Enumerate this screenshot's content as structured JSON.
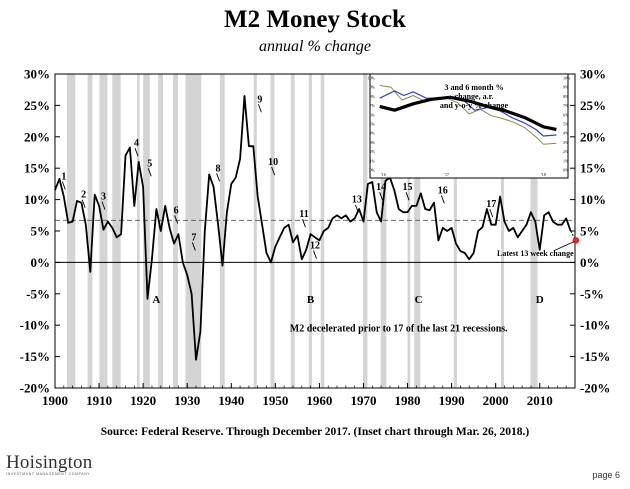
{
  "header": {
    "title": "M2 Money Stock",
    "subtitle": "annual % change"
  },
  "footer": {
    "source": "Source: Federal Reserve.  Through December 2017.  (Inset chart through Mar. 26, 2018.)",
    "logo_text": "Hoisington",
    "logo_subtext": "INVESTMENT MANAGEMENT COMPANY",
    "page": "page 6"
  },
  "colors": {
    "line": "#000000",
    "recession": "#d4d4d4",
    "latest_point": "#ee2222",
    "inset_blue": "#3344bb",
    "inset_olive": "#8a8a4a",
    "reference_line": "#555555"
  },
  "chart_data": [
    {
      "type": "line",
      "title": "M2 Money Stock",
      "subtitle": "annual % change",
      "xlim": [
        1900,
        2018
      ],
      "ylim": [
        -20,
        30
      ],
      "x_ticks": [
        "1900",
        "1910",
        "1920",
        "1930",
        "1940",
        "1950",
        "1960",
        "1970",
        "1980",
        "1990",
        "2000",
        "2010"
      ],
      "x_tick_values": [
        1900,
        1910,
        1920,
        1930,
        1940,
        1950,
        1960,
        1970,
        1980,
        1990,
        2000,
        2010
      ],
      "y_ticks": [
        "30%",
        "25%",
        "20%",
        "15%",
        "10%",
        "5%",
        "0%",
        "-5%",
        "-10%",
        "-15%",
        "-20%"
      ],
      "y_tick_values": [
        30,
        25,
        20,
        15,
        10,
        5,
        0,
        -5,
        -10,
        -15,
        -20
      ],
      "reference_line_value": 6.7,
      "recessions": [
        [
          1902.7,
          1904.6
        ],
        [
          1907.4,
          1908.5
        ],
        [
          1910.1,
          1911.9
        ],
        [
          1913.0,
          1914.9
        ],
        [
          1918.6,
          1919.2
        ],
        [
          1920.0,
          1921.5
        ],
        [
          1923.4,
          1924.5
        ],
        [
          1926.8,
          1927.9
        ],
        [
          1929.6,
          1933.2
        ],
        [
          1937.4,
          1938.5
        ],
        [
          1945.1,
          1945.8
        ],
        [
          1948.9,
          1949.8
        ],
        [
          1953.5,
          1954.4
        ],
        [
          1957.6,
          1958.3
        ],
        [
          1960.3,
          1961.1
        ],
        [
          1969.9,
          1970.9
        ],
        [
          1973.9,
          1975.2
        ],
        [
          1980.0,
          1980.6
        ],
        [
          1981.5,
          1982.9
        ],
        [
          1990.5,
          1991.2
        ],
        [
          2001.2,
          2001.9
        ],
        [
          2007.9,
          2009.5
        ]
      ],
      "series": [
        {
          "x": [
            1900,
            1901,
            1902,
            1903,
            1904,
            1905,
            1906,
            1907,
            1908,
            1909,
            1910,
            1911,
            1912,
            1913,
            1914,
            1915,
            1916,
            1917,
            1918,
            1919,
            1920,
            1921,
            1922,
            1923,
            1924,
            1925,
            1926,
            1927,
            1928,
            1929,
            1930,
            1931,
            1932,
            1933,
            1934,
            1935,
            1936,
            1937,
            1938,
            1939,
            1940,
            1941,
            1942,
            1943,
            1944,
            1945,
            1946,
            1947,
            1948,
            1949,
            1950,
            1951,
            1952,
            1953,
            1954,
            1955,
            1956,
            1957,
            1958,
            1959,
            1960,
            1961,
            1962,
            1963,
            1964,
            1965,
            1966,
            1967,
            1968,
            1969,
            1970,
            1971,
            1972,
            1973,
            1974,
            1975,
            1976,
            1977,
            1978,
            1979,
            1980,
            1981,
            1982,
            1983,
            1984,
            1985,
            1986,
            1987,
            1988,
            1989,
            1990,
            1991,
            1992,
            1993,
            1994,
            1995,
            1996,
            1997,
            1998,
            1999,
            2000,
            2001,
            2002,
            2003,
            2004,
            2005,
            2006,
            2007,
            2008,
            2009,
            2010,
            2011,
            2012,
            2013,
            2014,
            2015,
            2016,
            2017
          ],
          "values": [
            11.5,
            13.3,
            10.5,
            6.3,
            6.5,
            9.8,
            9.5,
            6.0,
            -1.5,
            10.8,
            9.0,
            5.2,
            6.5,
            5.5,
            4.0,
            4.5,
            17.0,
            18.3,
            9.0,
            16.0,
            12.0,
            -5.8,
            0.5,
            8.5,
            5.0,
            9.0,
            5.5,
            3.0,
            4.5,
            0.0,
            -2.0,
            -5.0,
            -15.5,
            -11.0,
            5.0,
            14.0,
            12.0,
            6.0,
            -0.5,
            8.0,
            12.5,
            13.5,
            16.5,
            26.5,
            18.5,
            18.5,
            10.5,
            6.0,
            1.5,
            0.0,
            2.5,
            4.0,
            5.5,
            6.0,
            3.2,
            4.3,
            0.5,
            2.0,
            4.5,
            4.0,
            3.5,
            5.0,
            5.5,
            7.0,
            7.5,
            7.0,
            7.5,
            6.5,
            7.0,
            8.5,
            6.5,
            12.5,
            12.8,
            8.0,
            6.5,
            13.0,
            13.5,
            11.5,
            8.5,
            8.0,
            8.0,
            9.0,
            9.0,
            11.0,
            8.5,
            8.3,
            9.5,
            3.5,
            5.5,
            5.0,
            5.5,
            3.0,
            1.8,
            1.5,
            0.5,
            1.5,
            5.0,
            5.6,
            8.5,
            6.0,
            6.0,
            10.5,
            6.5,
            5.0,
            5.5,
            4.0,
            5.0,
            6.0,
            8.0,
            6.5,
            2.0,
            7.5,
            8.0,
            6.5,
            6.0,
            6.0,
            7.0,
            5.0
          ]
        }
      ],
      "latest_point": {
        "x": 2018.2,
        "value": 3.5
      },
      "annotations": [
        {
          "label": "1",
          "x": 1902,
          "value": 13.2
        },
        {
          "label": "2",
          "x": 1906.5,
          "value": 10.3
        },
        {
          "label": "3",
          "x": 1911,
          "value": 10.0
        },
        {
          "label": "4",
          "x": 1918.5,
          "value": 18.5
        },
        {
          "label": "5",
          "x": 1921.5,
          "value": 15.3
        },
        {
          "label": "6",
          "x": 1927.5,
          "value": 7.8
        },
        {
          "label": "7",
          "x": 1931.5,
          "value": 3.5
        },
        {
          "label": "8",
          "x": 1937,
          "value": 14.5
        },
        {
          "label": "9",
          "x": 1946.5,
          "value": 25.5
        },
        {
          "label": "10",
          "x": 1949.5,
          "value": 15.5
        },
        {
          "label": "11",
          "x": 1956.5,
          "value": 7.2
        },
        {
          "label": "12",
          "x": 1959,
          "value": 2.2
        },
        {
          "label": "13",
          "x": 1968.5,
          "value": 9.5
        },
        {
          "label": "14",
          "x": 1974,
          "value": 11.5
        },
        {
          "label": "15",
          "x": 1980,
          "value": 11.5
        },
        {
          "label": "16",
          "x": 1988,
          "value": 11.0
        },
        {
          "label": "17",
          "x": 1999,
          "value": 8.8
        },
        {
          "label": "A",
          "x": 1923,
          "value": -6.5
        },
        {
          "label": "B",
          "x": 1958,
          "value": -6.5
        },
        {
          "label": "C",
          "x": 1982.5,
          "value": -6.5
        },
        {
          "label": "D",
          "x": 2010,
          "value": -6.5
        }
      ],
      "notes": [
        {
          "text": "M2 decelerated prior to 17 of the last 21 recessions.",
          "x": 1978,
          "value": -11
        },
        {
          "text": "Latest 13 week change",
          "x": 2009,
          "value": 1.0
        }
      ]
    },
    {
      "type": "line",
      "title": "3 and 6 month % change, a.r. and y-o-y % change",
      "title_lines": [
        "3 and 6 month %",
        "change, a.r.",
        "and y-o-y % change"
      ],
      "ylim": [
        0,
        10
      ],
      "y_ticks": [
        "0%",
        "1%",
        "2%",
        "3%",
        "4%",
        "5%",
        "6%",
        "7%",
        "8%",
        "9%",
        "10%"
      ],
      "y_tick_values": [
        0,
        1,
        2,
        3,
        4,
        5,
        6,
        7,
        8,
        9,
        10
      ],
      "x_ticks": [
        "'16",
        "'17",
        "'18"
      ],
      "x_tick_values": [
        0.04,
        0.38,
        0.9
      ],
      "series": [
        {
          "style": "thick black",
          "x": [
            0.02,
            0.1,
            0.2,
            0.3,
            0.4,
            0.5,
            0.6,
            0.7,
            0.8,
            0.9,
            0.97
          ],
          "values": [
            6.9,
            6.5,
            7.2,
            7.7,
            7.9,
            7.5,
            6.9,
            6.4,
            5.7,
            4.7,
            4.4
          ]
        },
        {
          "style": "blue",
          "x": [
            0.02,
            0.1,
            0.15,
            0.2,
            0.27,
            0.33,
            0.4,
            0.47,
            0.53,
            0.6,
            0.67,
            0.73,
            0.8,
            0.86,
            0.9,
            0.97
          ],
          "values": [
            7.8,
            8.6,
            8.1,
            8.5,
            7.8,
            7.8,
            8.0,
            7.6,
            6.5,
            6.8,
            6.4,
            5.7,
            5.1,
            4.4,
            3.7,
            3.8
          ]
        },
        {
          "style": "olive",
          "x": [
            0.02,
            0.08,
            0.14,
            0.2,
            0.26,
            0.32,
            0.38,
            0.44,
            0.5,
            0.56,
            0.62,
            0.68,
            0.74,
            0.8,
            0.86,
            0.9,
            0.97
          ],
          "values": [
            9.2,
            9.0,
            7.6,
            8.1,
            7.5,
            7.6,
            7.8,
            7.3,
            6.1,
            6.6,
            5.9,
            5.6,
            5.2,
            4.6,
            3.6,
            2.8,
            2.9
          ]
        }
      ]
    }
  ]
}
